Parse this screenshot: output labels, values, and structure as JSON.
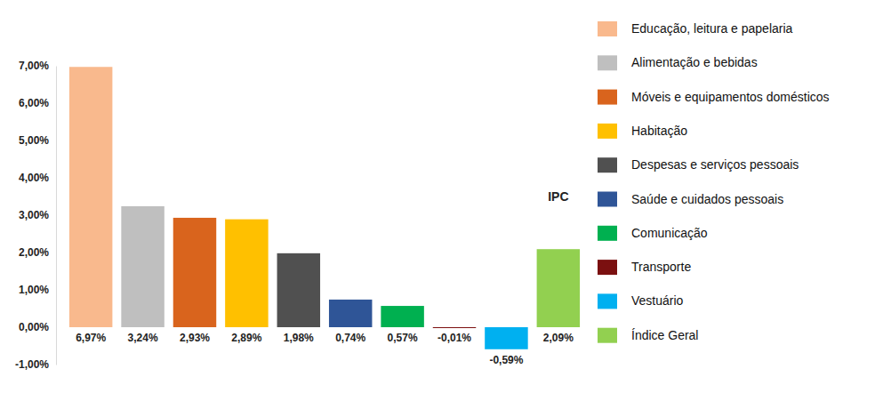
{
  "chart_data": {
    "type": "bar",
    "categories": [
      "Educação, leitura e papelaria",
      "Alimentação e bebidas",
      "Móveis e equipamentos domésticos",
      "Habitação",
      "Despesas e serviços pessoais",
      "Saúde e cuidados pessoais",
      "Comunicação",
      "Transporte",
      "Vestuário",
      "Índice Geral"
    ],
    "values": [
      6.97,
      3.24,
      2.93,
      2.89,
      1.98,
      0.74,
      0.57,
      -0.01,
      -0.59,
      2.09
    ],
    "value_labels": [
      "6,97%",
      "3,24%",
      "2,93%",
      "2,89%",
      "1,98%",
      "0,74%",
      "0,57%",
      "-0,01%",
      "-0,59%",
      "2,09%"
    ],
    "colors": [
      "#F9B98D",
      "#BFBFBF",
      "#D9641D",
      "#FFC000",
      "#505050",
      "#2F5597",
      "#00B050",
      "#7B1010",
      "#00B0F0",
      "#92D050"
    ],
    "ylim": [
      -1,
      7
    ],
    "yticks": [
      {
        "value": -1,
        "label": "-1,00%"
      },
      {
        "value": 0,
        "label": "0,00%"
      },
      {
        "value": 1,
        "label": "1,00%"
      },
      {
        "value": 2,
        "label": "2,00%"
      },
      {
        "value": 3,
        "label": "3,00%"
      },
      {
        "value": 4,
        "label": "4,00%"
      },
      {
        "value": 5,
        "label": "5,00%"
      },
      {
        "value": 6,
        "label": "6,00%"
      },
      {
        "value": 7,
        "label": "7,00%"
      }
    ],
    "annotations": [
      "IPC"
    ],
    "data_labels": true,
    "tick_labels": "y",
    "grid": false,
    "legend": "right"
  }
}
